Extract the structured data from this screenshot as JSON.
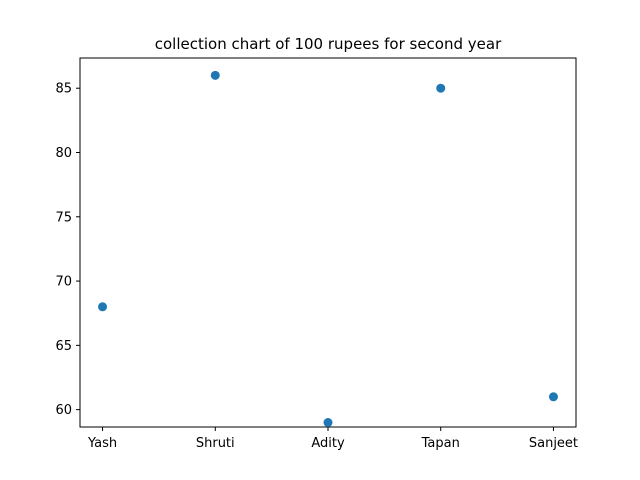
{
  "chart_data": {
    "type": "scatter",
    "title": "collection chart of 100 rupees for second year",
    "xlabel": "",
    "ylabel": "",
    "categories": [
      "Yash",
      "Shruti",
      "Adity",
      "Tapan",
      "Sanjeet"
    ],
    "values": [
      68,
      86,
      59,
      85,
      61
    ],
    "ylim": [
      58.65,
      87.35
    ],
    "yticks": [
      60,
      65,
      70,
      75,
      80,
      85
    ],
    "grid": false,
    "marker_color": "#1f77b4"
  }
}
